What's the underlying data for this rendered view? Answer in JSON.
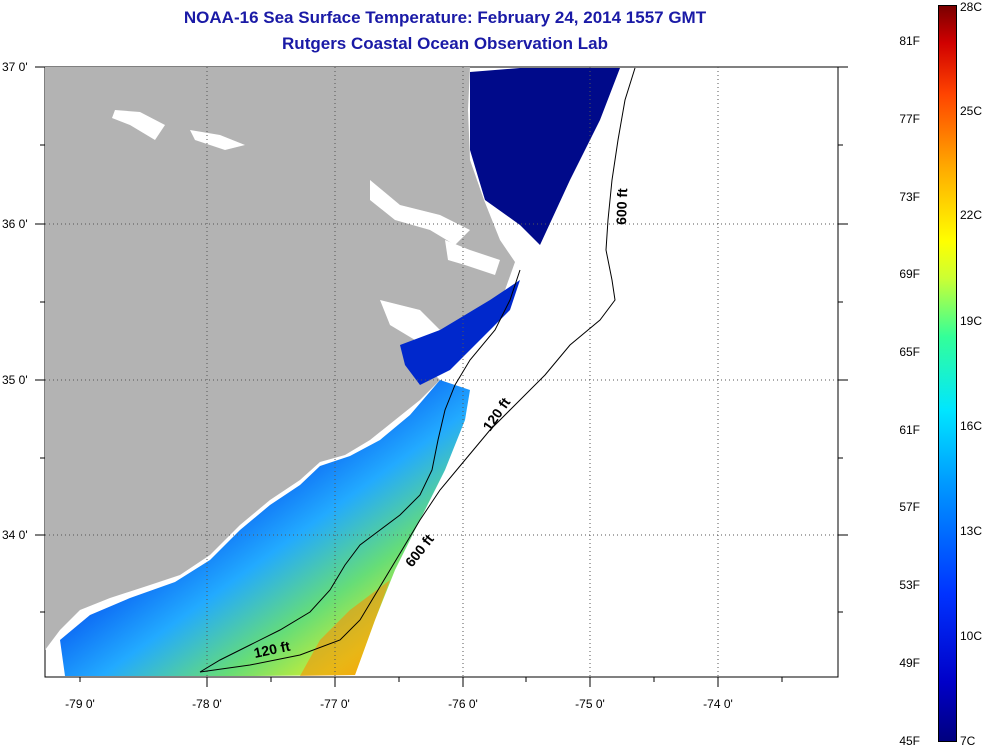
{
  "title": {
    "line1": "NOAA-16 Sea Surface Temperature:  February 24, 2014 1557 GMT",
    "line2": "Rutgers Coastal Ocean Observation Lab"
  },
  "latitude_labels": [
    "37 0'",
    "36 0'",
    "35 0'",
    "34 0'"
  ],
  "longitude_labels": [
    "-79 0'",
    "-78 0'",
    "-77 0'",
    "-76 0'",
    "-75 0'",
    "-74 0'"
  ],
  "contour_labels": {
    "c600_north": "600 ft",
    "c120_mid": "120 ft",
    "c600_south": "600 ft",
    "c120_south": "120 ft"
  },
  "colorbar": {
    "fahrenheit": [
      "81F",
      "77F",
      "73F",
      "69F",
      "65F",
      "61F",
      "57F",
      "53F",
      "49F",
      "45F"
    ],
    "celsius": [
      "28C",
      "25C",
      "22C",
      "19C",
      "16C",
      "13C",
      "10C",
      "7C"
    ]
  },
  "colors": {
    "land": "#b3b3b3",
    "ocean_no_data": "#ffffff",
    "title": "#1a1aa6",
    "sst_cold": "#00007f",
    "sst_warm": "#d00000"
  }
}
